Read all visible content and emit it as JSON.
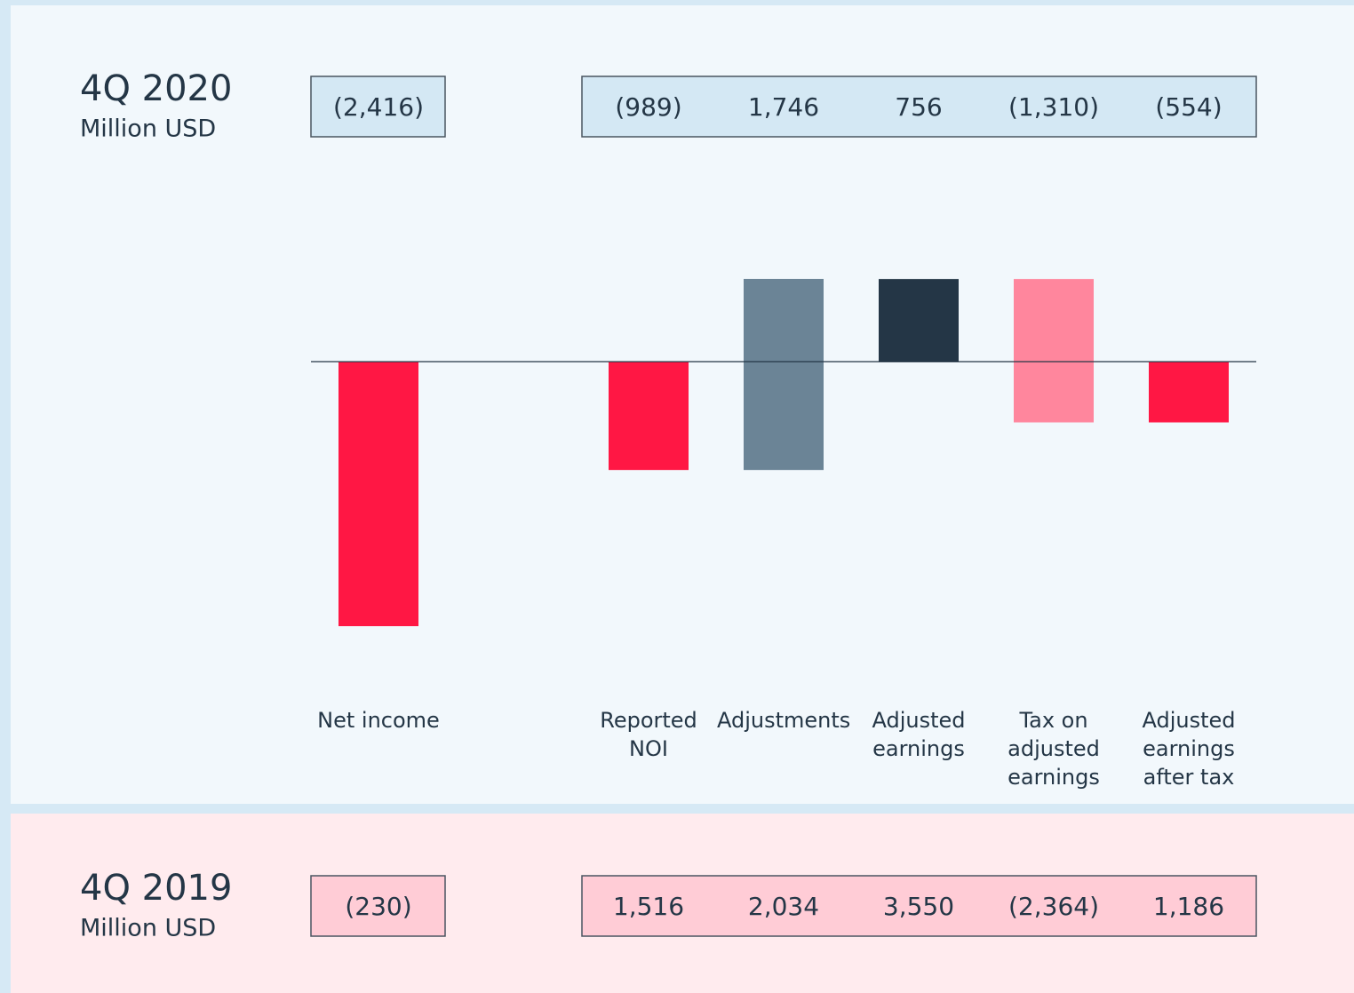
{
  "chart_data": {
    "type": "waterfall",
    "title": "4Q 2020",
    "subtitle": "Million USD",
    "categories": [
      "Net income",
      "Reported NOI",
      "Adjustments",
      "Adjusted earnings",
      "Tax on adjusted earnings",
      "Adjusted earnings after tax"
    ],
    "values": [
      -2416,
      -989,
      1746,
      756,
      -1310,
      -554
    ],
    "value_labels": [
      "(2,416)",
      "(989)",
      "1,746",
      "756",
      "(1,310)",
      "(554)"
    ],
    "measures": [
      "absolute",
      "absolute",
      "relative",
      "absolute",
      "relative",
      "absolute"
    ],
    "colors": [
      "#ff1744",
      "#ff1744",
      "#6b8496",
      "#243646",
      "#ff869d",
      "#ff1744"
    ],
    "comparison": {
      "title": "4Q 2019",
      "subtitle": "Million USD",
      "value_labels": [
        "(230)",
        "1,516",
        "2,034",
        "3,550",
        "(2,364)",
        "1,186"
      ]
    }
  }
}
